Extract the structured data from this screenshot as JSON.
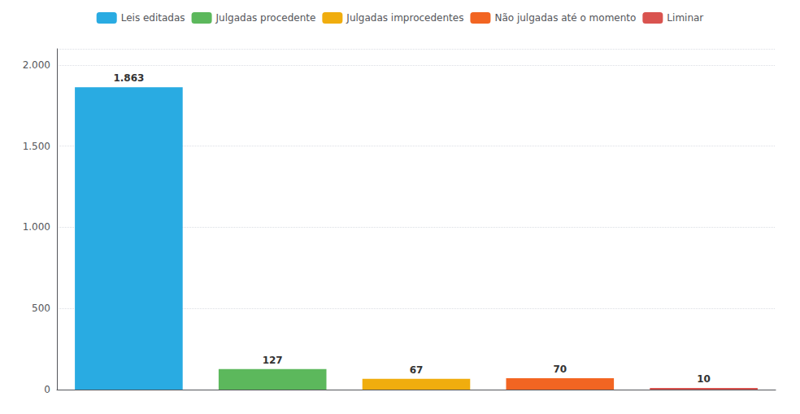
{
  "chart_data": {
    "type": "bar",
    "categories": [
      "Leis editadas",
      "Julgadas procedente",
      "Julgadas improcedentes",
      "Não julgadas até o momento",
      "Liminar"
    ],
    "values": [
      1863,
      127,
      67,
      70,
      10
    ],
    "value_labels": [
      "1.863",
      "127",
      "67",
      "70",
      "10"
    ],
    "colors": [
      "#29abe2",
      "#5cb85c",
      "#f0ad0e",
      "#f26522",
      "#d9534f"
    ],
    "data_labels": true,
    "ylim": [
      0,
      2100
    ],
    "yticks": [
      0,
      500,
      {
        "value": 1000,
        "label": "1.000"
      },
      {
        "value": 1500,
        "label": "1.500"
      },
      {
        "value": 2000,
        "label": "2.000"
      }
    ],
    "grid": true,
    "legend": "top",
    "tick_labels": "y"
  }
}
